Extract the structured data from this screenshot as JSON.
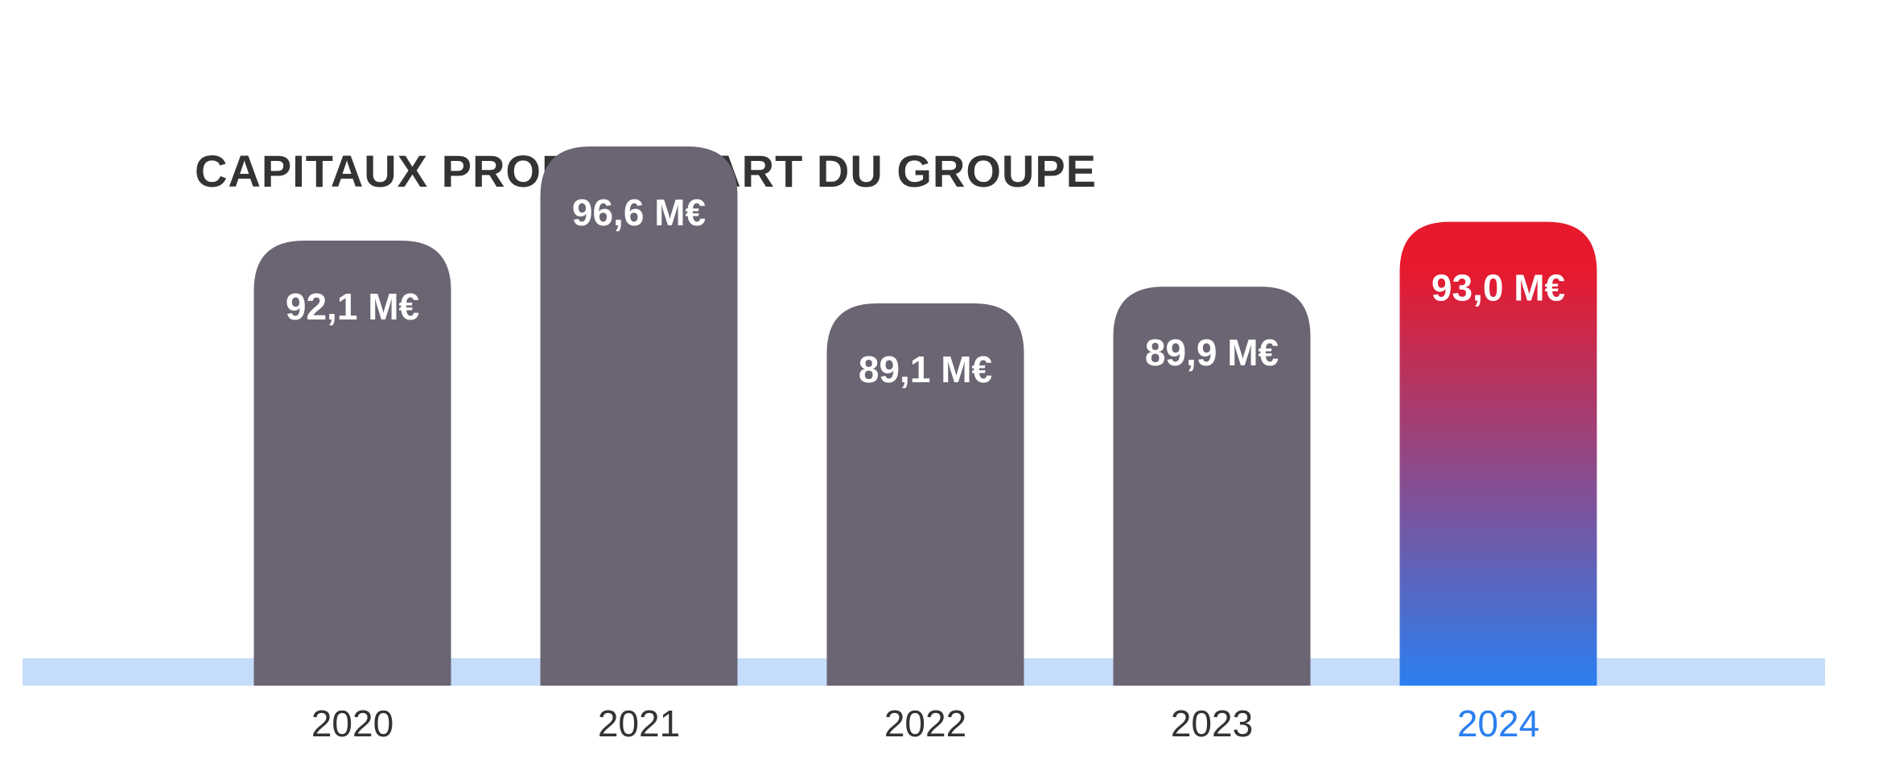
{
  "chart_data": {
    "type": "bar",
    "title": "CAPITAUX PROPRES PART DU GROUPE",
    "categories": [
      "2020",
      "2021",
      "2022",
      "2023",
      "2024"
    ],
    "values": [
      92.1,
      96.6,
      89.1,
      89.9,
      93.0
    ],
    "labels": [
      "92,1 M€",
      "96,6 M€",
      "89,1 M€",
      "89,9 M€",
      "93,0 M€"
    ],
    "unit": "M€",
    "highlight_index": 4,
    "colors": {
      "bar": "#6b6573",
      "highlight_top": "#e8192c",
      "highlight_bottom": "#2b7ff0",
      "baseline": "#c5dcfb",
      "tick_text": "#333333",
      "tick_highlight": "#2b7ff0"
    },
    "grid": false,
    "legend": "none"
  }
}
